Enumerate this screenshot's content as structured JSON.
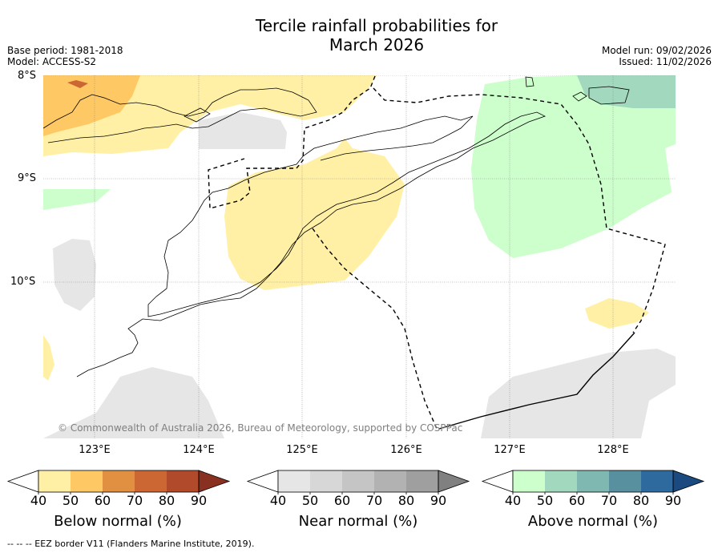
{
  "title_line1": "Tercile rainfall probabilities for",
  "title_line2": "March 2026",
  "base_period": "Base period: 1981-2018",
  "model": "Model: ACCESS-S2",
  "model_run": "Model run: 09/02/2026",
  "issued": "Issued: 11/02/2026",
  "lat_labels": [
    "8°S",
    "9°S",
    "10°S"
  ],
  "lon_labels": [
    "123°E",
    "124°E",
    "125°E",
    "126°E",
    "127°E",
    "128°E"
  ],
  "copyright": "© Commonwealth of Australia 2026, Bureau of Meteorology, supported by COSPPac",
  "footnote": "--  --  -- EEZ border V11 (Flanders Marine Institute, 2019).",
  "colorbars": [
    {
      "label": "Below normal (%)",
      "ticks": [
        "40",
        "50",
        "60",
        "70",
        "80",
        "90"
      ],
      "colors": [
        "#fff0a5",
        "#fec965",
        "#e09040",
        "#cc6633",
        "#b04a2a",
        "#8a3020"
      ]
    },
    {
      "label": "Near normal (%)",
      "ticks": [
        "40",
        "50",
        "60",
        "70",
        "80",
        "90"
      ],
      "colors": [
        "#e6e6e6",
        "#d7d7d7",
        "#c5c5c5",
        "#b2b2b2",
        "#9f9f9f",
        "#808080"
      ]
    },
    {
      "label": "Above normal (%)",
      "ticks": [
        "40",
        "50",
        "60",
        "70",
        "80",
        "90"
      ],
      "colors": [
        "#ccffcc",
        "#a2d8bd",
        "#7fb8b0",
        "#58909f",
        "#2e6a9e",
        "#1a4a80"
      ]
    }
  ]
}
